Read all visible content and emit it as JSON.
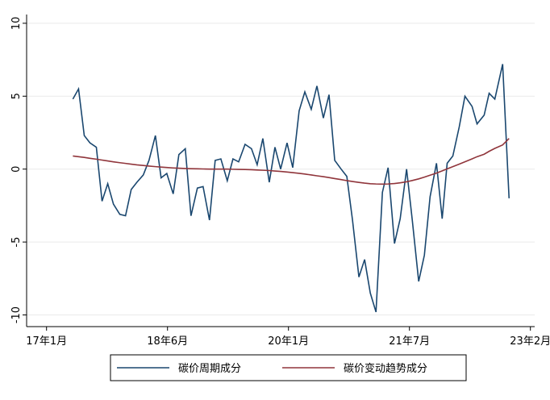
{
  "chart_data": {
    "type": "line",
    "x": [
      3.7,
      4.5,
      5.3,
      6.1,
      7.0,
      7.8,
      8.6,
      9.4,
      10.3,
      11.1,
      11.9,
      12.7,
      13.6,
      14.4,
      15.3,
      16.1,
      16.9,
      17.8,
      18.6,
      19.5,
      20.3,
      21.2,
      22.0,
      22.9,
      23.7,
      24.5,
      25.4,
      26.2,
      27.0,
      27.9,
      28.8,
      29.6,
      30.4,
      31.3,
      32.1,
      32.9,
      33.8,
      34.6,
      35.5,
      36.3,
      37.2,
      38.0,
      38.9,
      39.7,
      40.5,
      41.4,
      42.2,
      43.0,
      43.9,
      44.7,
      45.5,
      46.3,
      47.2,
      48.0,
      48.9,
      49.7,
      50.6,
      51.4,
      52.3,
      53.1,
      53.9,
      54.8,
      55.6,
      56.3,
      57.1,
      58.0,
      58.8,
      59.8,
      60.5,
      61.5,
      62.2,
      63.0,
      64.1,
      65.0
    ],
    "series": [
      {
        "name": "碳价周期成分",
        "color": "#1a476f",
        "values": [
          4.8,
          5.5,
          2.3,
          1.8,
          1.5,
          -2.2,
          -1.0,
          -2.4,
          -3.1,
          -3.2,
          -1.4,
          -0.9,
          -0.4,
          0.6,
          2.3,
          -0.6,
          -0.3,
          -1.7,
          1.0,
          1.4,
          -3.2,
          -1.3,
          -1.2,
          -3.5,
          0.6,
          0.7,
          -0.8,
          0.7,
          0.5,
          1.7,
          1.4,
          0.3,
          2.1,
          -0.9,
          1.5,
          0.0,
          1.8,
          0.1,
          4.0,
          5.3,
          4.1,
          5.7,
          3.5,
          5.1,
          0.6,
          0.0,
          -0.5,
          -3.5,
          -7.4,
          -6.2,
          -8.5,
          -9.8,
          -1.6,
          0.1,
          -5.1,
          -3.4,
          0.0,
          -3.5,
          -7.7,
          -5.9,
          -1.9,
          0.4,
          -3.4,
          0.4,
          0.9,
          2.9,
          5.0,
          4.3,
          3.1,
          3.7,
          5.2,
          4.8,
          7.2,
          -2.0
        ]
      },
      {
        "name": "碳价变动趋势成分",
        "color": "#90353b",
        "values": [
          0.9,
          0.85,
          0.8,
          0.74,
          0.68,
          0.62,
          0.56,
          0.5,
          0.44,
          0.39,
          0.34,
          0.29,
          0.25,
          0.21,
          0.17,
          0.14,
          0.11,
          0.08,
          0.06,
          0.04,
          0.03,
          0.02,
          0.01,
          0.0,
          0.0,
          0.0,
          0.0,
          -0.01,
          -0.02,
          -0.03,
          -0.04,
          -0.06,
          -0.08,
          -0.1,
          -0.13,
          -0.16,
          -0.2,
          -0.24,
          -0.29,
          -0.34,
          -0.4,
          -0.46,
          -0.52,
          -0.58,
          -0.65,
          -0.72,
          -0.79,
          -0.85,
          -0.91,
          -0.96,
          -1.0,
          -1.02,
          -1.03,
          -1.02,
          -0.99,
          -0.94,
          -0.87,
          -0.78,
          -0.67,
          -0.55,
          -0.42,
          -0.27,
          -0.12,
          0.02,
          0.17,
          0.34,
          0.5,
          0.7,
          0.85,
          1.02,
          1.22,
          1.42,
          1.66,
          2.1
        ]
      }
    ],
    "xlim": [
      -2.8,
      68.6
    ],
    "xticks": [
      {
        "value": 0,
        "label": "17年1月"
      },
      {
        "value": 17,
        "label": "18年6月"
      },
      {
        "value": 34,
        "label": "20年1月"
      },
      {
        "value": 51,
        "label": "21年7月"
      },
      {
        "value": 68,
        "label": "23年2月"
      }
    ],
    "ylim": [
      -10.8,
      10.6
    ],
    "yticks": [
      -10,
      -5,
      0,
      5,
      10
    ],
    "grid": true,
    "legend": "bottom"
  }
}
